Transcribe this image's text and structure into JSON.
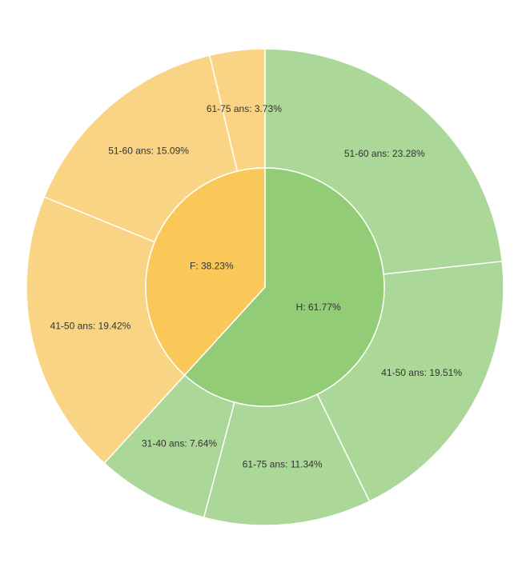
{
  "chart_data": {
    "type": "pie",
    "subtype": "sunburst",
    "inner": [
      {
        "label": "H: 61.77%",
        "group": "H",
        "value": 61.77,
        "color": "#92cc76"
      },
      {
        "label": "F: 38.23%",
        "group": "F",
        "value": 38.23,
        "color": "#f9c859"
      }
    ],
    "outer": [
      {
        "label": "51-60 ans: 23.28%",
        "group": "H",
        "value": 23.28,
        "color": "#abd898"
      },
      {
        "label": "41-50 ans: 19.51%",
        "group": "H",
        "value": 19.51,
        "color": "#abd898"
      },
      {
        "label": "61-75 ans: 11.34%",
        "group": "H",
        "value": 11.34,
        "color": "#abd898"
      },
      {
        "label": "31-40 ans: 7.64%",
        "group": "H",
        "value": 7.64,
        "color": "#abd898"
      },
      {
        "label": "41-50 ans: 19.42%",
        "group": "F",
        "value": 19.42,
        "color": "#fad485"
      },
      {
        "label": "51-60 ans: 15.09%",
        "group": "F",
        "value": 15.09,
        "color": "#fad485"
      },
      {
        "label": "61-75 ans: 3.73%",
        "group": "F",
        "value": 3.73,
        "color": "#fad485"
      }
    ],
    "separator_color": "#ffffff",
    "label_color": "#333333"
  }
}
